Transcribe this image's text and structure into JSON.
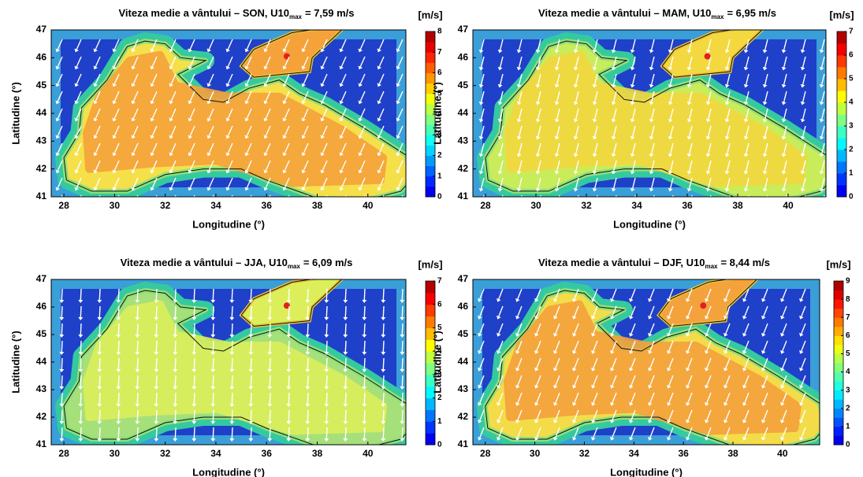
{
  "chart_data": [
    {
      "type": "contour_map",
      "title": "Viteza medie a vântului – SON, U10",
      "title_subscript": "max",
      "title_suffix": "= 7,59 m/s",
      "xlabel": "Longitudine (°)",
      "ylabel": "Latitudine (°)",
      "colorbar_label": "[m/s]",
      "xlim": [
        27.5,
        41.5
      ],
      "ylim": [
        41,
        47
      ],
      "xticks": [
        28,
        30,
        32,
        34,
        36,
        38,
        40
      ],
      "yticks": [
        41,
        42,
        43,
        44,
        45,
        46,
        47
      ],
      "clim": [
        0,
        8
      ],
      "cticks": [
        0,
        1,
        2,
        3,
        4,
        5,
        6,
        7,
        8
      ]
    },
    {
      "type": "contour_map",
      "title": "Viteza medie a vântului – MAM, U10",
      "title_subscript": "max",
      "title_suffix": "= 6,95 m/s",
      "xlabel": "Longitudine (°)",
      "ylabel": "Latitudine (°)",
      "colorbar_label": "[m/s]",
      "xlim": [
        27.5,
        41.5
      ],
      "ylim": [
        41,
        47
      ],
      "xticks": [
        28,
        30,
        32,
        34,
        36,
        38,
        40
      ],
      "yticks": [
        41,
        42,
        43,
        44,
        45,
        46,
        47
      ],
      "clim": [
        0,
        7
      ],
      "cticks": [
        0,
        1,
        2,
        3,
        4,
        5,
        6,
        7
      ]
    },
    {
      "type": "contour_map",
      "title": "Viteza medie a vântului – JJA, U10",
      "title_subscript": "max",
      "title_suffix": "= 6,09 m/s",
      "xlabel": "Longitudine (°)",
      "ylabel": "Latitudine (°)",
      "colorbar_label": "[m/s]",
      "xlim": [
        27.5,
        41.5
      ],
      "ylim": [
        41,
        47
      ],
      "xticks": [
        28,
        30,
        32,
        34,
        36,
        38,
        40
      ],
      "yticks": [
        41,
        42,
        43,
        44,
        45,
        46,
        47
      ],
      "clim": [
        0,
        7
      ],
      "cticks": [
        0,
        1,
        2,
        3,
        4,
        5,
        6,
        7
      ]
    },
    {
      "type": "contour_map",
      "title": "Viteza medie a vântului – DJF, U10",
      "title_subscript": "max",
      "title_suffix": "= 8,44 m/s",
      "xlabel": "Longitudine (°)",
      "ylabel": "Latitudine (°)",
      "colorbar_label": "[m/s]",
      "xlim": [
        27.5,
        41.5
      ],
      "ylim": [
        41,
        47
      ],
      "xticks": [
        28,
        30,
        32,
        34,
        36,
        38,
        40
      ],
      "yticks": [
        41,
        42,
        43,
        44,
        45,
        46,
        47
      ],
      "clim": [
        0,
        9
      ],
      "cticks": [
        0,
        1,
        2,
        3,
        4,
        5,
        6,
        7,
        8,
        9
      ]
    }
  ]
}
